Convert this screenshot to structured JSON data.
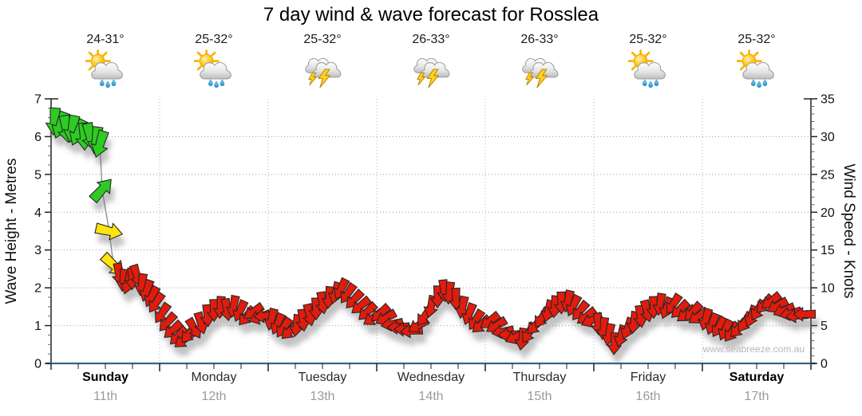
{
  "title": "7 day wind & wave forecast for Rosslea",
  "watermark": "www.seabreeze.com.au",
  "days": [
    {
      "name": "Sunday",
      "date": "11th",
      "temp": "24-31°",
      "icon": "showers",
      "bold": true
    },
    {
      "name": "Monday",
      "date": "12th",
      "temp": "25-32°",
      "icon": "showers",
      "bold": false
    },
    {
      "name": "Tuesday",
      "date": "13th",
      "temp": "25-32°",
      "icon": "storm",
      "bold": false
    },
    {
      "name": "Wednesday",
      "date": "14th",
      "temp": "26-33°",
      "icon": "storm",
      "bold": false
    },
    {
      "name": "Thursday",
      "date": "15th",
      "temp": "26-33°",
      "icon": "storm",
      "bold": false
    },
    {
      "name": "Friday",
      "date": "16th",
      "temp": "25-32°",
      "icon": "showers",
      "bold": false
    },
    {
      "name": "Saturday",
      "date": "17th",
      "temp": "25-32°",
      "icon": "showers",
      "bold": true
    }
  ],
  "chart_data": {
    "type": "wind-arrow-timeseries",
    "title": "7 day wind & wave forecast for Rosslea",
    "left_axis": {
      "label": "Wave Height - Metres",
      "min": 0,
      "max": 7,
      "ticks": [
        0,
        1,
        2,
        3,
        4,
        5,
        6,
        7
      ]
    },
    "right_axis": {
      "label": "Wind Speed - Knots",
      "min": 0,
      "max": 35,
      "ticks": [
        0,
        5,
        10,
        15,
        20,
        25,
        30,
        35
      ]
    },
    "x_axis": {
      "days": 7,
      "tick_divisions_per_day": 4,
      "grid": "dotted"
    },
    "arrow_colors": {
      "strong": "#2dcc21",
      "moderate": "#ffe40a",
      "light": "#e11b10"
    },
    "color_thresholds_knots": {
      "strong_min": 20,
      "moderate_min": 12
    },
    "point_format": [
      "day_offset",
      "wind_knots",
      "direction_deg_pointing_to"
    ],
    "points": [
      [
        0.03,
        32,
        184
      ],
      [
        0.085,
        31.5,
        200
      ],
      [
        0.14,
        31,
        171
      ],
      [
        0.195,
        31,
        191
      ],
      [
        0.25,
        30.5,
        206
      ],
      [
        0.305,
        30,
        178
      ],
      [
        0.36,
        30,
        167
      ],
      [
        0.415,
        29.5,
        188
      ],
      [
        0.45,
        29,
        197
      ],
      [
        0.47,
        23,
        42
      ],
      [
        0.535,
        17.5,
        103
      ],
      [
        0.575,
        13,
        133
      ],
      [
        0.625,
        11.8,
        172
      ],
      [
        0.665,
        11,
        186
      ],
      [
        0.705,
        10.6,
        196
      ],
      [
        0.745,
        11.2,
        179
      ],
      [
        0.79,
        11.6,
        163
      ],
      [
        0.835,
        10.4,
        188
      ],
      [
        0.88,
        9.6,
        199
      ],
      [
        0.925,
        8.8,
        208
      ],
      [
        0.965,
        8,
        214
      ],
      [
        1.02,
        6.6,
        214
      ],
      [
        1.07,
        5.4,
        222
      ],
      [
        1.12,
        4.4,
        228
      ],
      [
        1.17,
        3.6,
        224
      ],
      [
        1.22,
        3.1,
        231
      ],
      [
        1.27,
        3.9,
        219
      ],
      [
        1.32,
        4.6,
        149
      ],
      [
        1.38,
        5.3,
        164
      ],
      [
        1.44,
        6.3,
        176
      ],
      [
        1.5,
        7,
        179
      ],
      [
        1.56,
        7.4,
        184
      ],
      [
        1.62,
        7.1,
        171
      ],
      [
        1.68,
        7.5,
        191
      ],
      [
        1.74,
        6.9,
        204
      ],
      [
        1.8,
        6.2,
        221
      ],
      [
        1.86,
        6.8,
        236
      ],
      [
        1.92,
        6.1,
        251
      ],
      [
        1.97,
        6.3,
        263
      ],
      [
        2.03,
        5.8,
        194
      ],
      [
        2.085,
        5.2,
        204
      ],
      [
        2.14,
        4.7,
        214
      ],
      [
        2.2,
        4.3,
        226
      ],
      [
        2.26,
        5,
        189
      ],
      [
        2.32,
        5.7,
        174
      ],
      [
        2.38,
        6.4,
        168
      ],
      [
        2.44,
        7.2,
        179
      ],
      [
        2.5,
        8,
        171
      ],
      [
        2.56,
        8.7,
        186
      ],
      [
        2.62,
        9.3,
        196
      ],
      [
        2.67,
        9.8,
        206
      ],
      [
        2.73,
        9.2,
        214
      ],
      [
        2.79,
        8.4,
        223
      ],
      [
        2.85,
        7.6,
        231
      ],
      [
        2.91,
        6.8,
        227
      ],
      [
        2.965,
        6,
        236
      ],
      [
        3.03,
        6.6,
        229
      ],
      [
        3.08,
        6,
        241
      ],
      [
        3.14,
        5.2,
        261
      ],
      [
        3.2,
        4.8,
        268
      ],
      [
        3.26,
        4.5,
        271
      ],
      [
        3.32,
        4.3,
        265
      ],
      [
        3.38,
        5,
        239
      ],
      [
        3.44,
        6.2,
        217
      ],
      [
        3.5,
        7.5,
        193
      ],
      [
        3.56,
        8.8,
        181
      ],
      [
        3.62,
        9.6,
        174
      ],
      [
        3.67,
        9.3,
        186
      ],
      [
        3.73,
        8.5,
        179
      ],
      [
        3.79,
        7.4,
        191
      ],
      [
        3.85,
        6.5,
        201
      ],
      [
        3.91,
        5.7,
        213
      ],
      [
        3.96,
        5.1,
        229
      ],
      [
        4.04,
        5.6,
        233
      ],
      [
        4.1,
        5,
        239
      ],
      [
        4.16,
        4.2,
        261
      ],
      [
        4.22,
        3.8,
        269
      ],
      [
        4.28,
        3.5,
        246
      ],
      [
        4.34,
        3.2,
        189
      ],
      [
        4.4,
        4,
        211
      ],
      [
        4.46,
        5,
        223
      ],
      [
        4.52,
        6,
        214
      ],
      [
        4.58,
        6.9,
        196
      ],
      [
        4.64,
        7.5,
        186
      ],
      [
        4.7,
        8,
        179
      ],
      [
        4.76,
        8.2,
        193
      ],
      [
        4.81,
        7.6,
        206
      ],
      [
        4.87,
        6.9,
        219
      ],
      [
        4.93,
        6.2,
        233
      ],
      [
        4.98,
        5.7,
        246
      ],
      [
        5.04,
        5.2,
        176
      ],
      [
        5.09,
        4.6,
        186
      ],
      [
        5.14,
        3.8,
        191
      ],
      [
        5.19,
        2.6,
        183
      ],
      [
        5.25,
        3.6,
        196
      ],
      [
        5.31,
        4.6,
        201
      ],
      [
        5.37,
        5.4,
        189
      ],
      [
        5.43,
        6.2,
        173
      ],
      [
        5.49,
        6.9,
        166
      ],
      [
        5.55,
        7.4,
        179
      ],
      [
        5.61,
        7.8,
        189
      ],
      [
        5.67,
        7.3,
        201
      ],
      [
        5.73,
        7.8,
        213
      ],
      [
        5.79,
        7.1,
        226
      ],
      [
        5.85,
        6.5,
        233
      ],
      [
        5.91,
        6.8,
        223
      ],
      [
        5.96,
        6.2,
        236
      ],
      [
        6.03,
        5.8,
        196
      ],
      [
        6.09,
        5.2,
        201
      ],
      [
        6.15,
        4.8,
        211
      ],
      [
        6.21,
        4.4,
        206
      ],
      [
        6.27,
        4.1,
        216
      ],
      [
        6.33,
        4.6,
        223
      ],
      [
        6.39,
        5.4,
        213
      ],
      [
        6.45,
        6.2,
        201
      ],
      [
        6.51,
        7,
        211
      ],
      [
        6.57,
        7.8,
        223
      ],
      [
        6.63,
        8.2,
        233
      ],
      [
        6.69,
        7.6,
        241
      ],
      [
        6.75,
        7,
        249
      ],
      [
        6.81,
        6.6,
        256
      ],
      [
        6.87,
        6.3,
        263
      ],
      [
        6.94,
        6.5,
        270
      ]
    ]
  }
}
